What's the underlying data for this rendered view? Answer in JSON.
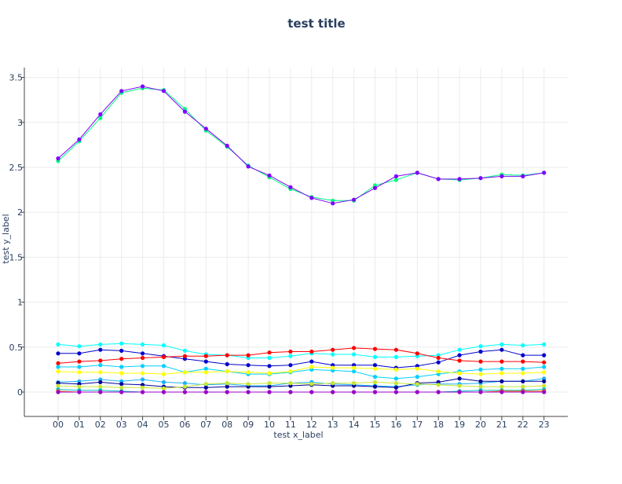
{
  "chart_data": {
    "type": "line",
    "title": "test title",
    "xlabel": "test x_label",
    "ylabel": "test y_label",
    "categories": [
      "00",
      "01",
      "02",
      "03",
      "04",
      "05",
      "06",
      "07",
      "08",
      "09",
      "10",
      "11",
      "12",
      "13",
      "14",
      "15",
      "16",
      "17",
      "18",
      "19",
      "20",
      "21",
      "22",
      "23"
    ],
    "ylim": [
      -0.27,
      3.65
    ],
    "yticks": [
      0,
      0.5,
      1,
      1.5,
      2,
      2.5,
      3,
      3.5
    ],
    "ytick_labels": [
      "0",
      "0.5",
      "1",
      "1.5",
      "2",
      "2.5",
      "3",
      "3.5"
    ],
    "grid": true,
    "legend": false,
    "series": [
      {
        "color": "#00ff80",
        "values": [
          2.57,
          2.79,
          3.05,
          3.33,
          3.38,
          3.36,
          3.15,
          2.91,
          2.73,
          2.52,
          2.39,
          2.26,
          2.17,
          2.13,
          2.13,
          2.3,
          2.36,
          2.44,
          2.37,
          2.36,
          2.38,
          2.42,
          2.41,
          2.44
        ]
      },
      {
        "color": "#8000ff",
        "values": [
          2.6,
          2.81,
          3.09,
          3.35,
          3.4,
          3.35,
          3.12,
          2.93,
          2.74,
          2.51,
          2.41,
          2.28,
          2.16,
          2.1,
          2.14,
          2.27,
          2.4,
          2.44,
          2.37,
          2.37,
          2.38,
          2.4,
          2.4,
          2.44
        ]
      },
      {
        "color": "#00ffff",
        "values": [
          0.53,
          0.51,
          0.53,
          0.54,
          0.53,
          0.52,
          0.46,
          0.42,
          0.41,
          0.38,
          0.38,
          0.4,
          0.43,
          0.42,
          0.42,
          0.39,
          0.39,
          0.4,
          0.41,
          0.47,
          0.51,
          0.53,
          0.52,
          0.53
        ]
      },
      {
        "color": "#0000cc",
        "values": [
          0.43,
          0.43,
          0.47,
          0.46,
          0.43,
          0.4,
          0.37,
          0.34,
          0.31,
          0.3,
          0.29,
          0.3,
          0.34,
          0.3,
          0.3,
          0.3,
          0.27,
          0.29,
          0.33,
          0.41,
          0.45,
          0.47,
          0.41,
          0.41
        ]
      },
      {
        "color": "#ff0000",
        "values": [
          0.32,
          0.34,
          0.35,
          0.37,
          0.38,
          0.39,
          0.4,
          0.4,
          0.41,
          0.41,
          0.44,
          0.45,
          0.45,
          0.47,
          0.49,
          0.48,
          0.47,
          0.43,
          0.38,
          0.35,
          0.34,
          0.34,
          0.34,
          0.33
        ]
      },
      {
        "color": "#00d0ff",
        "values": [
          0.28,
          0.28,
          0.3,
          0.28,
          0.29,
          0.29,
          0.22,
          0.26,
          0.23,
          0.2,
          0.2,
          0.22,
          0.25,
          0.24,
          0.23,
          0.17,
          0.15,
          0.17,
          0.2,
          0.23,
          0.25,
          0.26,
          0.26,
          0.28
        ]
      },
      {
        "color": "#ffff00",
        "values": [
          0.23,
          0.22,
          0.22,
          0.21,
          0.21,
          0.2,
          0.22,
          0.22,
          0.23,
          0.22,
          0.21,
          0.23,
          0.28,
          0.27,
          0.27,
          0.26,
          0.25,
          0.26,
          0.23,
          0.21,
          0.2,
          0.21,
          0.21,
          0.22
        ]
      },
      {
        "color": "#19b2ff",
        "values": [
          0.11,
          0.12,
          0.14,
          0.12,
          0.14,
          0.11,
          0.1,
          0.08,
          0.09,
          0.07,
          0.07,
          0.1,
          0.11,
          0.09,
          0.08,
          0.07,
          0.06,
          0.08,
          0.09,
          0.09,
          0.1,
          0.12,
          0.12,
          0.15
        ]
      },
      {
        "color": "#000099",
        "values": [
          0.1,
          0.09,
          0.11,
          0.09,
          0.08,
          0.06,
          0.05,
          0.05,
          0.06,
          0.06,
          0.06,
          0.07,
          0.08,
          0.07,
          0.07,
          0.06,
          0.05,
          0.1,
          0.11,
          0.15,
          0.12,
          0.12,
          0.12,
          0.12
        ]
      },
      {
        "color": "#c8e632",
        "values": [
          0.07,
          0.06,
          0.06,
          0.05,
          0.05,
          0.04,
          0.06,
          0.09,
          0.1,
          0.09,
          0.1,
          0.1,
          0.09,
          0.1,
          0.1,
          0.11,
          0.1,
          0.09,
          0.08,
          0.07,
          0.06,
          0.06,
          0.06,
          0.07
        ]
      },
      {
        "color": "#00c0c0",
        "values": [
          0.03,
          0.02,
          0.02,
          0.01,
          0.0,
          0.0,
          0.0,
          0.0,
          0.0,
          0.0,
          0.0,
          0.0,
          0.0,
          0.0,
          0.0,
          0.0,
          0.0,
          0.0,
          0.0,
          0.01,
          0.02,
          0.02,
          0.02,
          0.03
        ]
      },
      {
        "color": "#ff6600",
        "values": [
          0.01,
          0.0,
          0.0,
          0.0,
          0.0,
          0.0,
          0.0,
          0.0,
          0.0,
          0.0,
          0.0,
          0.0,
          0.0,
          0.0,
          0.0,
          0.0,
          0.0,
          0.0,
          0.0,
          0.0,
          0.0,
          0.01,
          0.01,
          0.01
        ]
      },
      {
        "color": "#9900cc",
        "values": [
          0.0,
          0.0,
          0.0,
          0.0,
          0.0,
          0.0,
          0.0,
          0.0,
          0.0,
          0.0,
          0.0,
          0.0,
          0.0,
          0.0,
          0.0,
          0.0,
          0.0,
          0.0,
          0.0,
          0.0,
          0.0,
          0.0,
          0.0,
          0.0
        ]
      }
    ]
  }
}
